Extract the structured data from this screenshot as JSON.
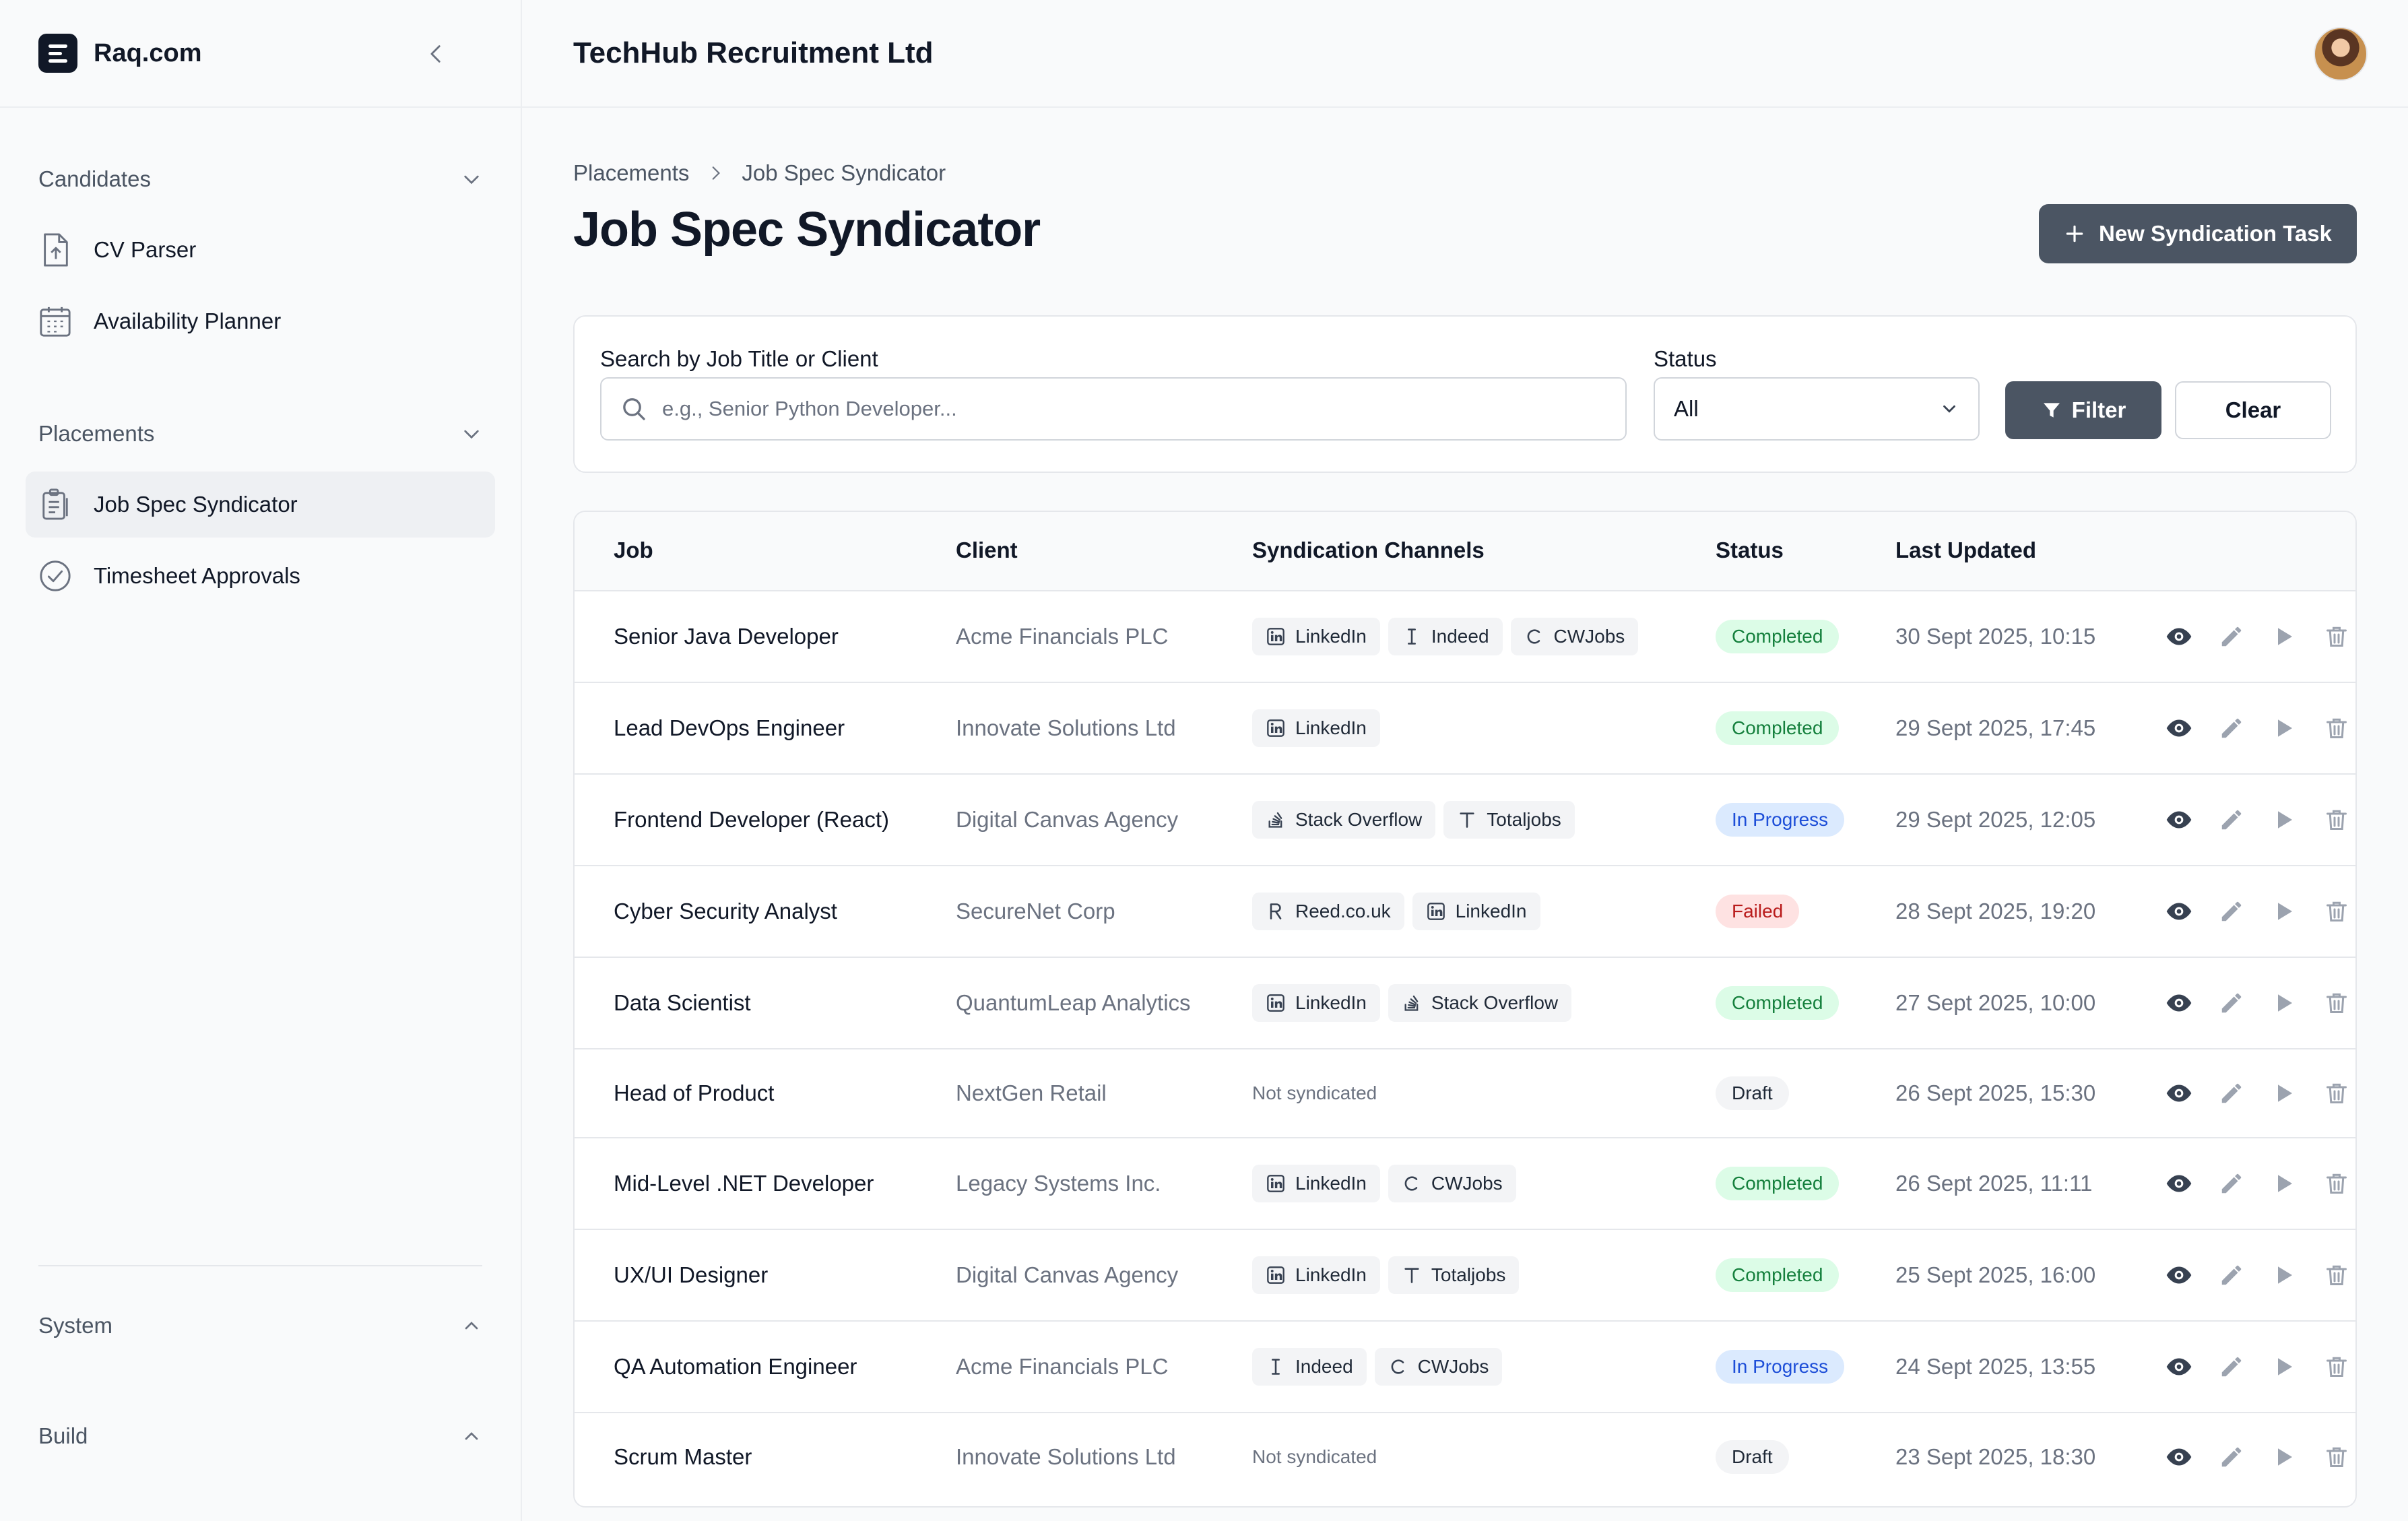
{
  "app": {
    "brand": "Raq.com",
    "org_name": "TechHub Recruitment Ltd"
  },
  "sidebar": {
    "sections": [
      {
        "title": "Candidates",
        "expanded": true,
        "items": [
          {
            "label": "CV Parser",
            "icon": "file-upload-icon"
          },
          {
            "label": "Availability Planner",
            "icon": "calendar-icon"
          }
        ]
      },
      {
        "title": "Placements",
        "expanded": true,
        "items": [
          {
            "label": "Job Spec Syndicator",
            "icon": "clipboard-icon",
            "active": true
          },
          {
            "label": "Timesheet Approvals",
            "icon": "check-circle-icon"
          }
        ]
      },
      {
        "title": "System",
        "expanded": false,
        "items": []
      },
      {
        "title": "Build",
        "expanded": false,
        "items": []
      }
    ]
  },
  "breadcrumb": {
    "parent": "Placements",
    "current": "Job Spec Syndicator"
  },
  "page": {
    "title": "Job Spec Syndicator",
    "new_button": "New Syndication Task"
  },
  "filters": {
    "search_label": "Search by Job Title or Client",
    "search_placeholder": "e.g., Senior Python Developer...",
    "search_value": "",
    "status_label": "Status",
    "status_value": "All",
    "filter_button": "Filter",
    "clear_button": "Clear"
  },
  "table": {
    "columns": [
      "Job",
      "Client",
      "Syndication Channels",
      "Status",
      "Last Updated"
    ],
    "not_syndicated_text": "Not syndicated",
    "status_colors": {
      "Completed": {
        "bg": "#dcfce7",
        "fg": "#15803d"
      },
      "In Progress": {
        "bg": "#dbeafe",
        "fg": "#1d4ed8"
      },
      "Failed": {
        "bg": "#fee2e2",
        "fg": "#b91c1c"
      },
      "Draft": {
        "bg": "#f3f4f6",
        "fg": "#1f2937"
      }
    },
    "rows": [
      {
        "job": "Senior Java Developer",
        "client": "Acme Financials PLC",
        "channels": [
          "LinkedIn",
          "Indeed",
          "CWJobs"
        ],
        "status": "Completed",
        "updated": "30 Sept 2025, 10:15"
      },
      {
        "job": "Lead DevOps Engineer",
        "client": "Innovate Solutions Ltd",
        "channels": [
          "LinkedIn"
        ],
        "status": "Completed",
        "updated": "29 Sept 2025, 17:45"
      },
      {
        "job": "Frontend Developer (React)",
        "client": "Digital Canvas Agency",
        "channels": [
          "Stack Overflow",
          "Totaljobs"
        ],
        "status": "In Progress",
        "updated": "29 Sept 2025, 12:05"
      },
      {
        "job": "Cyber Security Analyst",
        "client": "SecureNet Corp",
        "channels": [
          "Reed.co.uk",
          "LinkedIn"
        ],
        "status": "Failed",
        "updated": "28 Sept 2025, 19:20"
      },
      {
        "job": "Data Scientist",
        "client": "QuantumLeap Analytics",
        "channels": [
          "LinkedIn",
          "Stack Overflow"
        ],
        "status": "Completed",
        "updated": "27 Sept 2025, 10:00"
      },
      {
        "job": "Head of Product",
        "client": "NextGen Retail",
        "channels": [],
        "status": "Draft",
        "updated": "26 Sept 2025, 15:30"
      },
      {
        "job": "Mid-Level .NET Developer",
        "client": "Legacy Systems Inc.",
        "channels": [
          "LinkedIn",
          "CWJobs"
        ],
        "status": "Completed",
        "updated": "26 Sept 2025, 11:11"
      },
      {
        "job": "UX/UI Designer",
        "client": "Digital Canvas Agency",
        "channels": [
          "LinkedIn",
          "Totaljobs"
        ],
        "status": "Completed",
        "updated": "25 Sept 2025, 16:00"
      },
      {
        "job": "QA Automation Engineer",
        "client": "Acme Financials PLC",
        "channels": [
          "Indeed",
          "CWJobs"
        ],
        "status": "In Progress",
        "updated": "24 Sept 2025, 13:55"
      },
      {
        "job": "Scrum Master",
        "client": "Innovate Solutions Ltd",
        "channels": [],
        "status": "Draft",
        "updated": "23 Sept 2025, 18:30"
      }
    ],
    "actions": [
      {
        "name": "view-button",
        "icon": "eye-icon"
      },
      {
        "name": "edit-button",
        "icon": "pencil-icon"
      },
      {
        "name": "run-button",
        "icon": "play-icon"
      },
      {
        "name": "delete-button",
        "icon": "trash-icon"
      }
    ]
  }
}
